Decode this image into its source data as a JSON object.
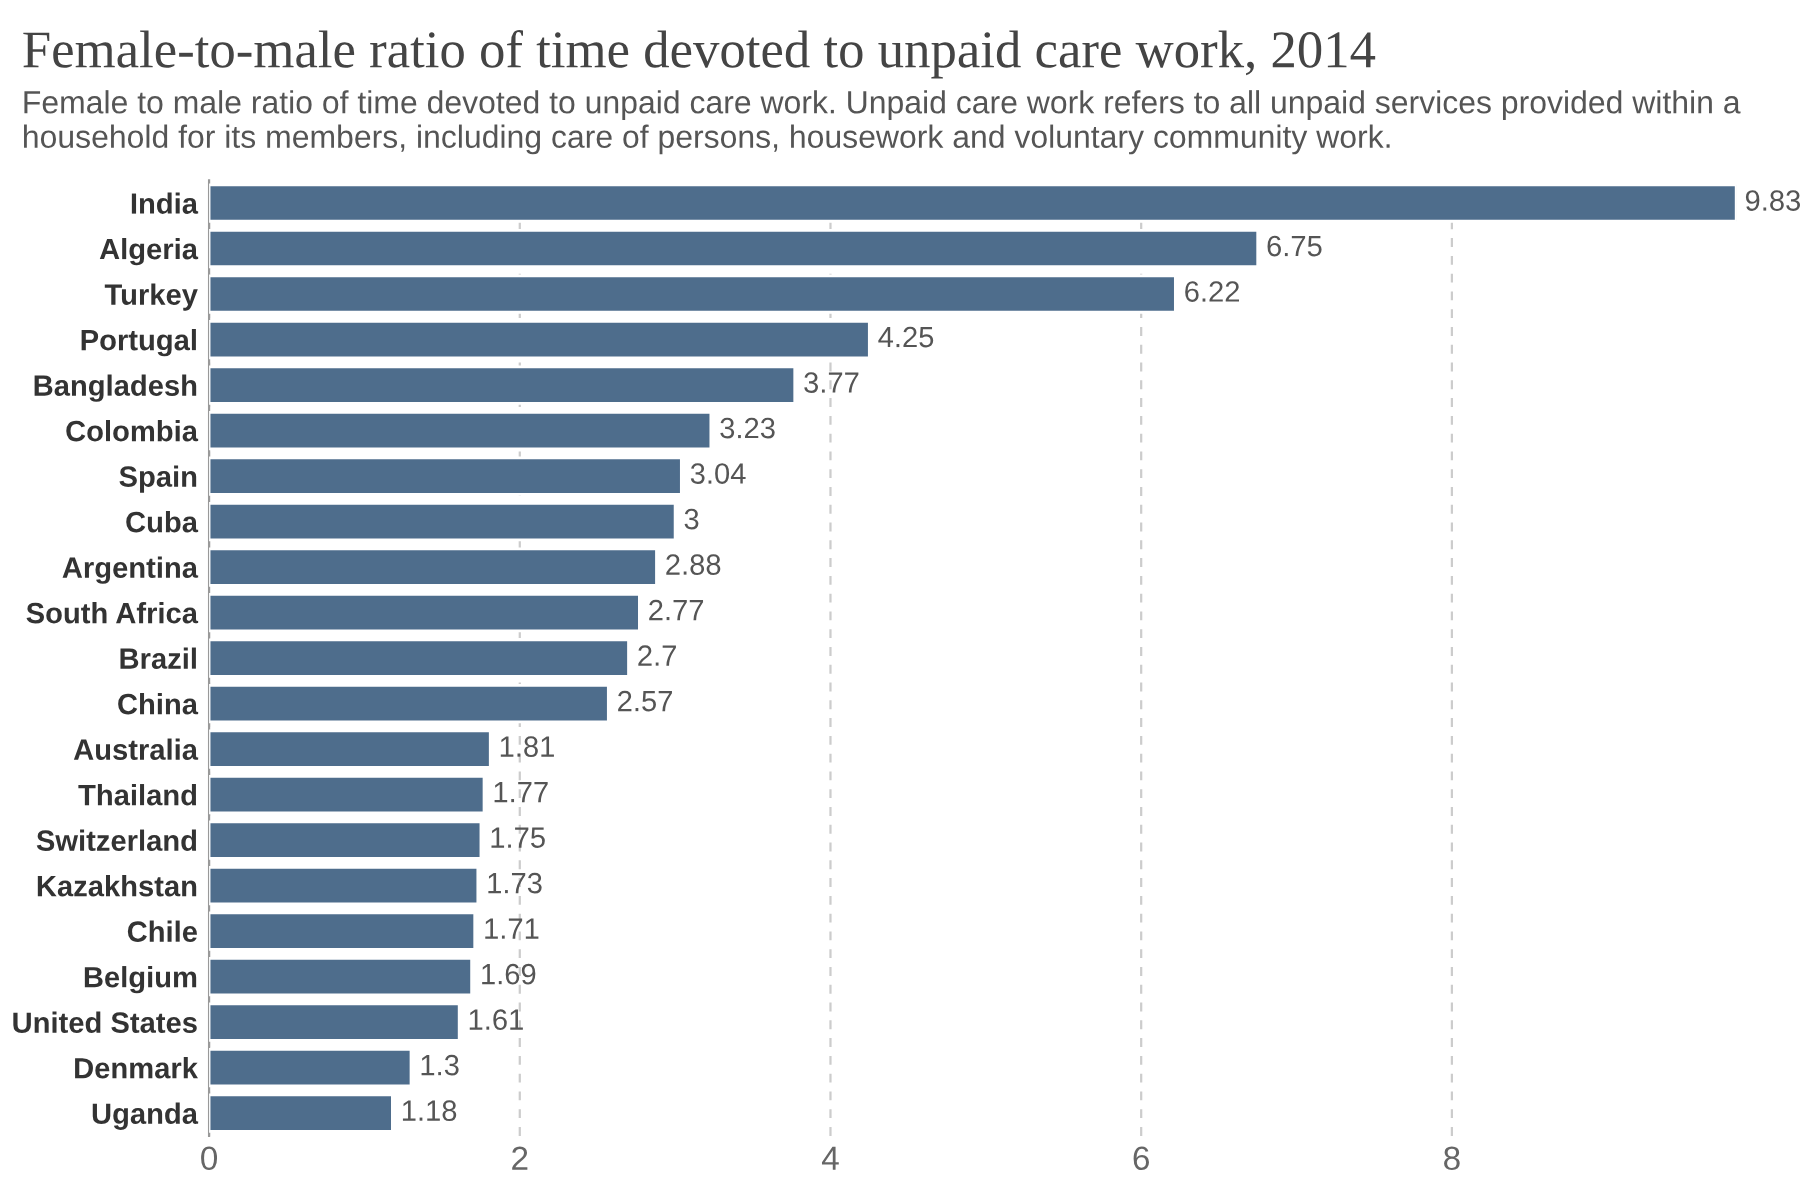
{
  "chart_data": {
    "type": "bar",
    "orientation": "horizontal",
    "title": "Female-to-male ratio of time devoted to unpaid care work, 2014",
    "subtitle": "Female to male ratio of time devoted to unpaid care work. Unpaid care work refers to all unpaid services provided within a household for its members, including care of persons, housework and voluntary community work.",
    "categories": [
      "India",
      "Algeria",
      "Turkey",
      "Portugal",
      "Bangladesh",
      "Colombia",
      "Spain",
      "Cuba",
      "Argentina",
      "South Africa",
      "Brazil",
      "China",
      "Australia",
      "Thailand",
      "Switzerland",
      "Kazakhstan",
      "Chile",
      "Belgium",
      "United States",
      "Denmark",
      "Uganda"
    ],
    "values": [
      9.83,
      6.75,
      6.22,
      4.25,
      3.77,
      3.23,
      3.04,
      3,
      2.88,
      2.77,
      2.7,
      2.57,
      1.81,
      1.77,
      1.75,
      1.73,
      1.71,
      1.69,
      1.61,
      1.3,
      1.18
    ],
    "color": "#4e6d8c",
    "data_labels": true,
    "xlim": [
      0,
      9.83
    ],
    "xticks": [
      0,
      2,
      4,
      6,
      8
    ],
    "grid": "x"
  }
}
